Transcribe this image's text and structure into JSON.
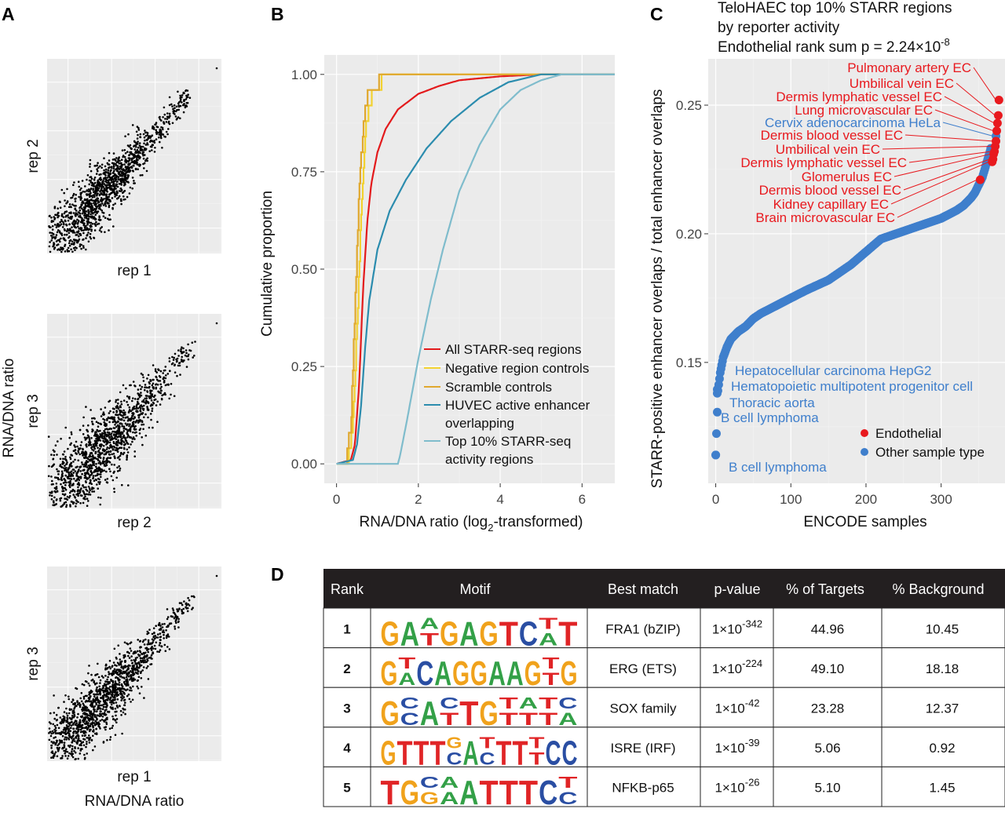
{
  "panel_labels": {
    "a": "A",
    "b": "B",
    "c": "C",
    "d": "D"
  },
  "panel_a": {
    "shared_ylabel": "RNA/DNA ratio",
    "shared_xlabel": "RNA/DNA ratio",
    "scatters": [
      {
        "xlabel": "rep 1",
        "ylabel": "rep 2"
      },
      {
        "xlabel": "rep 2",
        "ylabel": "rep 3"
      },
      {
        "xlabel": "rep 1",
        "ylabel": "rep 3"
      }
    ]
  },
  "colors": {
    "all_starr": "#e31a1c",
    "negative": "#f2d230",
    "scramble": "#e0a82e",
    "huvec": "#2b8cae",
    "top10": "#7fbccc",
    "endothelial": "#e8191e",
    "other": "#3f7fcc",
    "panel_bg": "#ebebeb",
    "table_header": "#231f20"
  },
  "chart_data": [
    {
      "type": "line",
      "panel": "B",
      "title": "",
      "xlabel_main": "RNA/DNA ratio (log",
      "xlabel_sub": "2",
      "xlabel_tail": "-transformed)",
      "ylabel": "Cumulative proportion",
      "xlim": [
        -0.3,
        6.8
      ],
      "ylim": [
        -0.05,
        1.05
      ],
      "x_ticks": [
        0,
        2,
        4,
        6
      ],
      "y_ticks": [
        0,
        0.25,
        0.5,
        0.75,
        1.0
      ],
      "y_tick_labels": [
        "0.00",
        "0.25",
        "0.50",
        "0.75",
        "1.00"
      ],
      "series": [
        {
          "name": "All STARR-seq regions",
          "color_key": "all_starr",
          "x": [
            0,
            0.35,
            0.45,
            0.55,
            0.65,
            0.75,
            0.85,
            1.0,
            1.2,
            1.5,
            2.0,
            2.5,
            3.0,
            4.0,
            5.0,
            6.0
          ],
          "y": [
            0,
            0.01,
            0.05,
            0.2,
            0.45,
            0.62,
            0.72,
            0.8,
            0.86,
            0.91,
            0.95,
            0.97,
            0.985,
            0.995,
            1.0,
            1.0
          ]
        },
        {
          "name": "Negative region controls",
          "color_key": "negative",
          "x": [
            0,
            0.3,
            0.4,
            0.5,
            0.6,
            0.7,
            0.8,
            0.9,
            1.0,
            1.1,
            1.3,
            1.5,
            1.7,
            2.0,
            6.8
          ],
          "y": [
            0,
            0.02,
            0.1,
            0.35,
            0.65,
            0.85,
            0.92,
            0.96,
            0.97,
            0.98,
            0.99,
            0.995,
            1.0,
            1.0,
            1.0
          ]
        },
        {
          "name": "Scramble controls",
          "color_key": "scramble",
          "x": [
            0,
            0.25,
            0.35,
            0.45,
            0.55,
            0.65,
            0.75,
            0.9,
            1.1,
            1.3,
            1.6,
            2.0,
            6.8
          ],
          "y": [
            0,
            0.02,
            0.1,
            0.4,
            0.7,
            0.87,
            0.94,
            0.97,
            0.985,
            0.99,
            1.0,
            1.0,
            1.0
          ]
        },
        {
          "name": "HUVEC active enhancer overlapping",
          "color_key": "huvec",
          "x": [
            0,
            0.4,
            0.5,
            0.6,
            0.7,
            0.8,
            1.0,
            1.3,
            1.7,
            2.2,
            2.8,
            3.5,
            4.2,
            5.0,
            6.0
          ],
          "y": [
            0,
            0.01,
            0.05,
            0.15,
            0.3,
            0.42,
            0.55,
            0.65,
            0.73,
            0.81,
            0.88,
            0.94,
            0.98,
            1.0,
            1.0
          ]
        },
        {
          "name": "Top 10% STARR-seq activity regions",
          "color_key": "top10",
          "x": [
            0,
            1.5,
            1.55,
            1.7,
            2.0,
            2.3,
            2.6,
            3.0,
            3.5,
            4.0,
            4.5,
            5.0,
            5.5,
            6.8
          ],
          "y": [
            0,
            0,
            0.02,
            0.1,
            0.27,
            0.42,
            0.55,
            0.7,
            0.82,
            0.91,
            0.96,
            0.985,
            1.0,
            1.0
          ]
        }
      ],
      "legend": [
        "All STARR-seq regions",
        "Negative region controls",
        "Scramble controls",
        "HUVEC active enhancer",
        "overlapping",
        "Top 10% STARR-seq",
        "activity regions"
      ],
      "legend_position": "bottom-right"
    },
    {
      "type": "scatter",
      "panel": "C",
      "title_lines": [
        "TeloHAEC top 10% STARR regions",
        "by reporter activity",
        "Endothelial rank sum p = 2.24×10"
      ],
      "title_exponent": "-8",
      "xlabel": "ENCODE samples",
      "ylabel": "STARR-positive enhancer overlaps / total enhancer overlaps",
      "xlim": [
        -10,
        385
      ],
      "ylim": [
        0.103,
        0.268
      ],
      "x_ticks": [
        0,
        100,
        200,
        300
      ],
      "y_ticks": [
        0.15,
        0.2,
        0.25
      ],
      "y_tick_labels": [
        "0.15",
        "0.20",
        "0.25"
      ],
      "curve_x": [
        0,
        3,
        6,
        10,
        15,
        20,
        30,
        40,
        50,
        60,
        80,
        100,
        120,
        150,
        180,
        200,
        220,
        250,
        280,
        300,
        320,
        330,
        340,
        345,
        350,
        355,
        360,
        365,
        370,
        375
      ],
      "curve_y": [
        0.114,
        0.139,
        0.146,
        0.152,
        0.156,
        0.159,
        0.162,
        0.164,
        0.167,
        0.169,
        0.172,
        0.175,
        0.178,
        0.182,
        0.188,
        0.193,
        0.198,
        0.201,
        0.204,
        0.206,
        0.209,
        0.211,
        0.214,
        0.216,
        0.219,
        0.222,
        0.227,
        0.232,
        0.238,
        0.25
      ],
      "endothelial_points": [
        {
          "x": 377,
          "y": 0.252,
          "label": "Pulmonary artery EC"
        },
        {
          "x": 376,
          "y": 0.246,
          "label": "Umbilical vein EC"
        },
        {
          "x": 375,
          "y": 0.243,
          "label": "Dermis lymphatic vessel EC"
        },
        {
          "x": 374,
          "y": 0.24,
          "label": "Lung microvascular EC"
        },
        {
          "x": 373,
          "y": 0.236,
          "label": "Dermis blood vessel EC"
        },
        {
          "x": 372,
          "y": 0.234,
          "label": "Umbilical vein EC"
        },
        {
          "x": 371,
          "y": 0.232,
          "label": "Dermis lymphatic vessel EC"
        },
        {
          "x": 370,
          "y": 0.231,
          "label": "Glomerulus EC"
        },
        {
          "x": 369,
          "y": 0.229,
          "label": "Dermis blood vessel EC"
        },
        {
          "x": 368,
          "y": 0.228,
          "label": "Kidney capillary EC"
        },
        {
          "x": 352,
          "y": 0.221,
          "label": "Brain microvascular EC"
        }
      ],
      "other_labels": [
        {
          "x": 373,
          "y": 0.238,
          "label": "Cervix adenocarcinoma HeLa"
        },
        {
          "x": 8,
          "y": 0.152,
          "label": "Hepatocellular carcinoma HepG2"
        },
        {
          "x": 6,
          "y": 0.147,
          "label": "Hematopoietic multipotent progenitor cell"
        },
        {
          "x": 3,
          "y": 0.139,
          "label": "Thoracic aorta"
        },
        {
          "x": 2,
          "y": 0.138,
          "label": "B cell lymphoma"
        },
        {
          "x": 0,
          "y": 0.114,
          "label": "B cell lymphoma"
        }
      ],
      "legend": [
        {
          "name": "Endothelial",
          "color_key": "endothelial"
        },
        {
          "name": "Other sample type",
          "color_key": "other"
        }
      ],
      "legend_position": "bottom-right"
    },
    {
      "type": "table",
      "panel": "D",
      "columns": [
        "Rank",
        "Motif",
        "Best match",
        "p-value",
        "% of Targets",
        "% Background"
      ],
      "rows": [
        {
          "rank": "1",
          "motif": "GATGAGTCAT",
          "best_match": "FRA1 (bZIP)",
          "p_base": "1×10",
          "p_exp": "-342",
          "targets": "44.96",
          "background": "10.45"
        },
        {
          "rank": "2",
          "motif": "GACAGGAAGTG",
          "best_match": "ERG (ETS)",
          "p_base": "1×10",
          "p_exp": "-224",
          "targets": "49.10",
          "background": "18.18"
        },
        {
          "rank": "3",
          "motif": "GCATTGTTTA",
          "best_match": "SOX family",
          "p_base": "1×10",
          "p_exp": "-42",
          "targets": "23.28",
          "background": "12.37"
        },
        {
          "rank": "4",
          "motif": "GTTTCACTTTCC",
          "best_match": "ISRE (IRF)",
          "p_base": "1×10",
          "p_exp": "-39",
          "targets": "5.06",
          "background": "0.92"
        },
        {
          "rank": "5",
          "motif": "TGGAATTTCC",
          "best_match": "NFKB-p65",
          "p_base": "1×10",
          "p_exp": "-26",
          "targets": "5.10",
          "background": "1.45"
        }
      ]
    }
  ]
}
